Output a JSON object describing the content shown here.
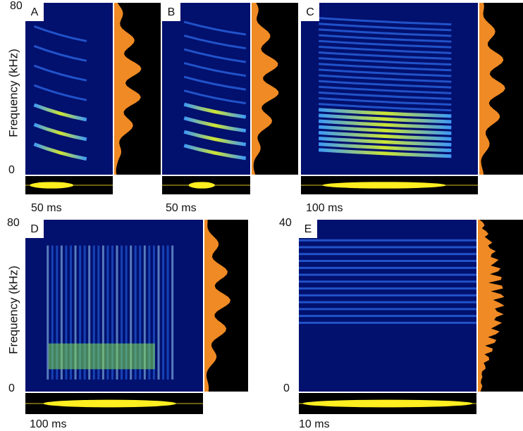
{
  "figure": {
    "rows": [
      {
        "y_axis_label": "Frequency (kHz)",
        "y_max": "80",
        "y_min": "0",
        "panels": [
          {
            "label": "A",
            "scale_bar": "50 ms"
          },
          {
            "label": "B",
            "scale_bar": "50 ms"
          },
          {
            "label": "C",
            "scale_bar": "100 ms"
          }
        ]
      },
      {
        "y_axis_label": "Frequency (kHz)",
        "y_max": "80",
        "y_min": "0",
        "panels": [
          {
            "label": "D",
            "scale_bar": "100 ms"
          },
          {
            "label": "E",
            "scale_bar": "10 ms",
            "y_max": "40",
            "y_min": "0"
          }
        ]
      }
    ]
  }
}
